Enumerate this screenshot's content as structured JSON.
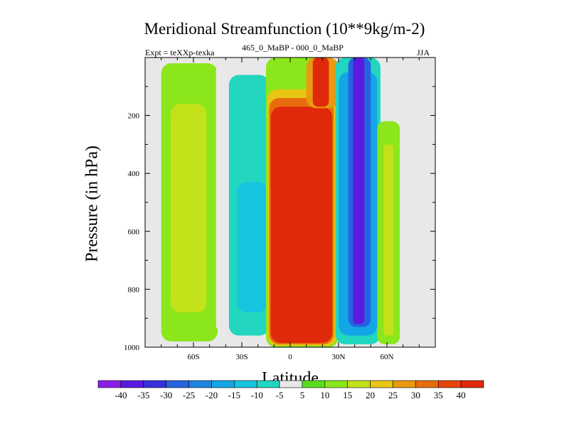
{
  "chart_data": {
    "type": "contour",
    "title": "Meridional Streamfunction (10**9kg/m-2)",
    "subtitle_left": "Expt = teXXp-texka",
    "subtitle_center": "465_0_MaBP - 000_0_MaBP",
    "subtitle_right": "JJA",
    "xlabel": "Latitude",
    "ylabel": "Pressure (in hPa)",
    "xlim": [
      -90,
      90
    ],
    "ylim": [
      1000,
      0
    ],
    "x_ticks": [
      {
        "value": -60,
        "label": "60S"
      },
      {
        "value": -30,
        "label": "30S"
      },
      {
        "value": 0,
        "label": "0"
      },
      {
        "value": 30,
        "label": "30N"
      },
      {
        "value": 60,
        "label": "60N"
      }
    ],
    "y_ticks": [
      {
        "value": 200,
        "label": "200"
      },
      {
        "value": 400,
        "label": "400"
      },
      {
        "value": 600,
        "label": "600"
      },
      {
        "value": 800,
        "label": "800"
      },
      {
        "value": 1000,
        "label": "1000"
      }
    ],
    "background_color": "#e8e8e8",
    "colorbar": {
      "labels": [
        "-40",
        "-35",
        "-30",
        "-25",
        "-20",
        "-15",
        "-10",
        "-5",
        "5",
        "10",
        "15",
        "20",
        "25",
        "30",
        "35",
        "40"
      ],
      "colors": [
        "#8a1ee6",
        "#5a1adf",
        "#3730db",
        "#2663e0",
        "#1c86e2",
        "#13a6e6",
        "#17c4e0",
        "#22d6c0",
        "#e8e8e8",
        "#5adc1e",
        "#8ce61c",
        "#c4e21a",
        "#e8c614",
        "#e89a10",
        "#e86c0e",
        "#e8440c",
        "#e0280a"
      ]
    },
    "regions": [
      {
        "lat_min": -80,
        "lat_max": -45,
        "p_top": 20,
        "p_bot": 980,
        "value": 10
      },
      {
        "lat_min": -74,
        "lat_max": -52,
        "p_top": 160,
        "p_bot": 880,
        "value": 15
      },
      {
        "lat_min": -46,
        "lat_max": -38,
        "p_top": 30,
        "p_bot": 940,
        "value": -5
      },
      {
        "lat_min": -38,
        "lat_max": -13,
        "p_top": 60,
        "p_bot": 960,
        "value": -10
      },
      {
        "lat_min": -33,
        "lat_max": -14,
        "p_top": 430,
        "p_bot": 880,
        "value": -15
      },
      {
        "lat_min": -15,
        "lat_max": 30,
        "p_top": 0,
        "p_bot": 1000,
        "value": 10
      },
      {
        "lat_min": -14,
        "lat_max": 29,
        "p_top": 110,
        "p_bot": 995,
        "value": 20
      },
      {
        "lat_min": -13,
        "lat_max": 27,
        "p_top": 140,
        "p_bot": 990,
        "value": 30
      },
      {
        "lat_min": -12,
        "lat_max": 26,
        "p_top": 170,
        "p_bot": 985,
        "value": 40
      },
      {
        "lat_min": 10,
        "lat_max": 30,
        "p_top": 0,
        "p_bot": 175,
        "value": 25
      },
      {
        "lat_min": 14,
        "lat_max": 24,
        "p_top": 0,
        "p_bot": 170,
        "value": 40
      },
      {
        "lat_min": 28,
        "lat_max": 56,
        "p_top": 0,
        "p_bot": 990,
        "value": -10
      },
      {
        "lat_min": 30,
        "lat_max": 54,
        "p_top": 50,
        "p_bot": 960,
        "value": -20
      },
      {
        "lat_min": 36,
        "lat_max": 50,
        "p_top": 0,
        "p_bot": 930,
        "value": -30
      },
      {
        "lat_min": 39,
        "lat_max": 46,
        "p_top": 0,
        "p_bot": 920,
        "value": -40
      },
      {
        "lat_min": 54,
        "lat_max": 68,
        "p_top": 220,
        "p_bot": 990,
        "value": 10
      },
      {
        "lat_min": 58,
        "lat_max": 64,
        "p_top": 300,
        "p_bot": 960,
        "value": 15
      }
    ]
  }
}
